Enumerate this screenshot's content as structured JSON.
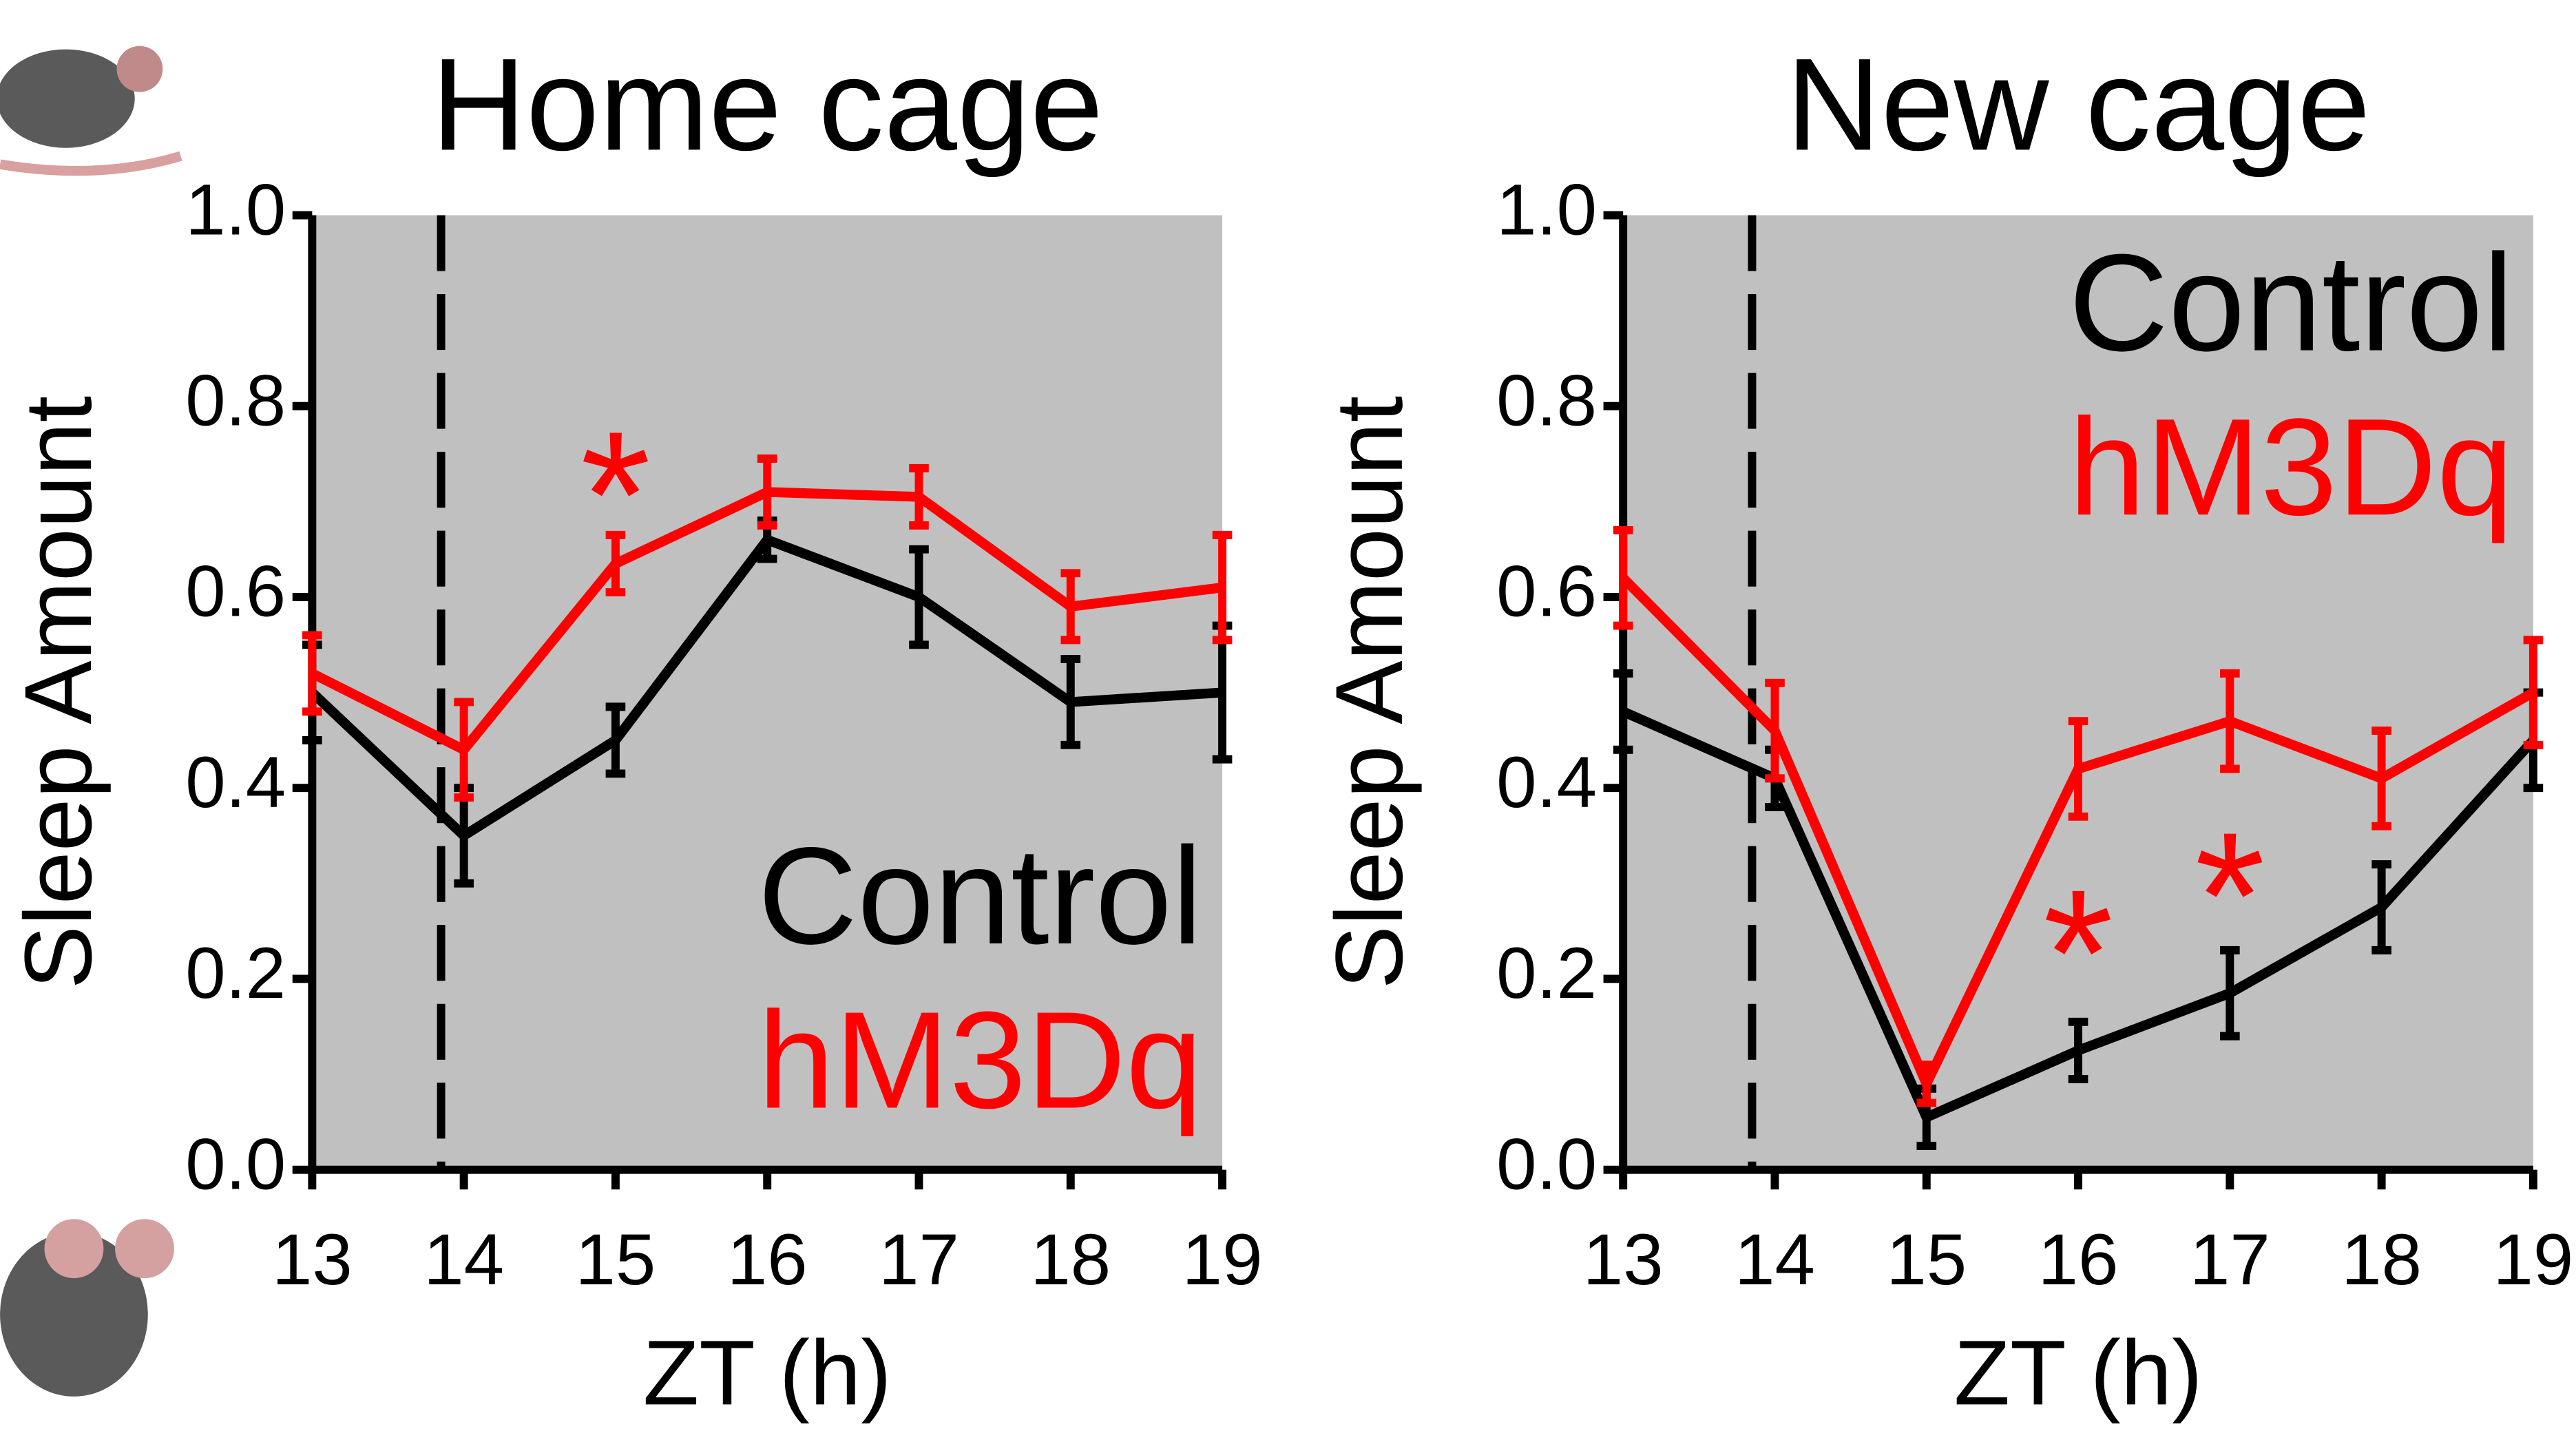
{
  "chart_data": [
    {
      "type": "line",
      "title": "Home cage",
      "x_label": "ZT (h)",
      "y_label": "Sleep Amount",
      "xlim": [
        13,
        19
      ],
      "xticks": [
        13,
        14,
        15,
        16,
        17,
        18,
        19
      ],
      "ylim": [
        0,
        1
      ],
      "yticks": [
        {
          "value": 0,
          "label": "0.0"
        },
        0.2,
        0.4,
        0.6,
        0.8,
        {
          "value": 1,
          "label": "1.0"
        }
      ],
      "x": [
        13,
        14,
        15,
        16,
        17,
        18,
        19
      ],
      "dashed_line_x": 13.85,
      "legend": "lower right",
      "background": "#c0c0c0",
      "series": [
        {
          "name": "Control",
          "color": "#000000",
          "values": [
            0.5,
            0.35,
            0.45,
            0.66,
            0.6,
            0.49,
            0.5
          ],
          "errors": [
            0.05,
            0.05,
            0.035,
            0.02,
            0.05,
            0.045,
            0.07
          ]
        },
        {
          "name": "hM3Dq",
          "color": "#ff0000",
          "values": [
            0.52,
            0.44,
            0.635,
            0.71,
            0.705,
            0.59,
            0.61
          ],
          "errors": [
            0.04,
            0.05,
            0.03,
            0.035,
            0.03,
            0.035,
            0.055
          ]
        }
      ],
      "annotations": [
        {
          "text": "*",
          "x": 15,
          "y": 0.74,
          "color": "#ff0000"
        }
      ]
    },
    {
      "type": "line",
      "title": "New cage",
      "x_label": "ZT (h)",
      "y_label": "Sleep Amount",
      "xlim": [
        13,
        19
      ],
      "xticks": [
        13,
        14,
        15,
        16,
        17,
        18,
        19
      ],
      "ylim": [
        0,
        1
      ],
      "yticks": [
        {
          "value": 0,
          "label": "0.0"
        },
        0.2,
        0.4,
        0.6,
        0.8,
        {
          "value": 1,
          "label": "1.0"
        }
      ],
      "x": [
        13,
        14,
        15,
        16,
        17,
        18,
        19
      ],
      "dashed_line_x": 13.85,
      "legend": "upper right",
      "background": "#c0c0c0",
      "series": [
        {
          "name": "Control",
          "color": "#000000",
          "values": [
            0.48,
            0.41,
            0.055,
            0.125,
            0.185,
            0.275,
            0.45
          ],
          "errors": [
            0.04,
            0.03,
            0.03,
            0.03,
            0.045,
            0.045,
            0.05
          ]
        },
        {
          "name": "hM3Dq",
          "color": "#ff0000",
          "values": [
            0.62,
            0.46,
            0.09,
            0.42,
            0.47,
            0.41,
            0.5
          ],
          "errors": [
            0.05,
            0.05,
            0.02,
            0.05,
            0.05,
            0.05,
            0.055
          ]
        }
      ],
      "annotations": [
        {
          "text": "*",
          "x": 16,
          "y": 0.26,
          "color": "#ff0000"
        },
        {
          "text": "*",
          "x": 17,
          "y": 0.32,
          "color": "#ff0000"
        }
      ]
    }
  ]
}
